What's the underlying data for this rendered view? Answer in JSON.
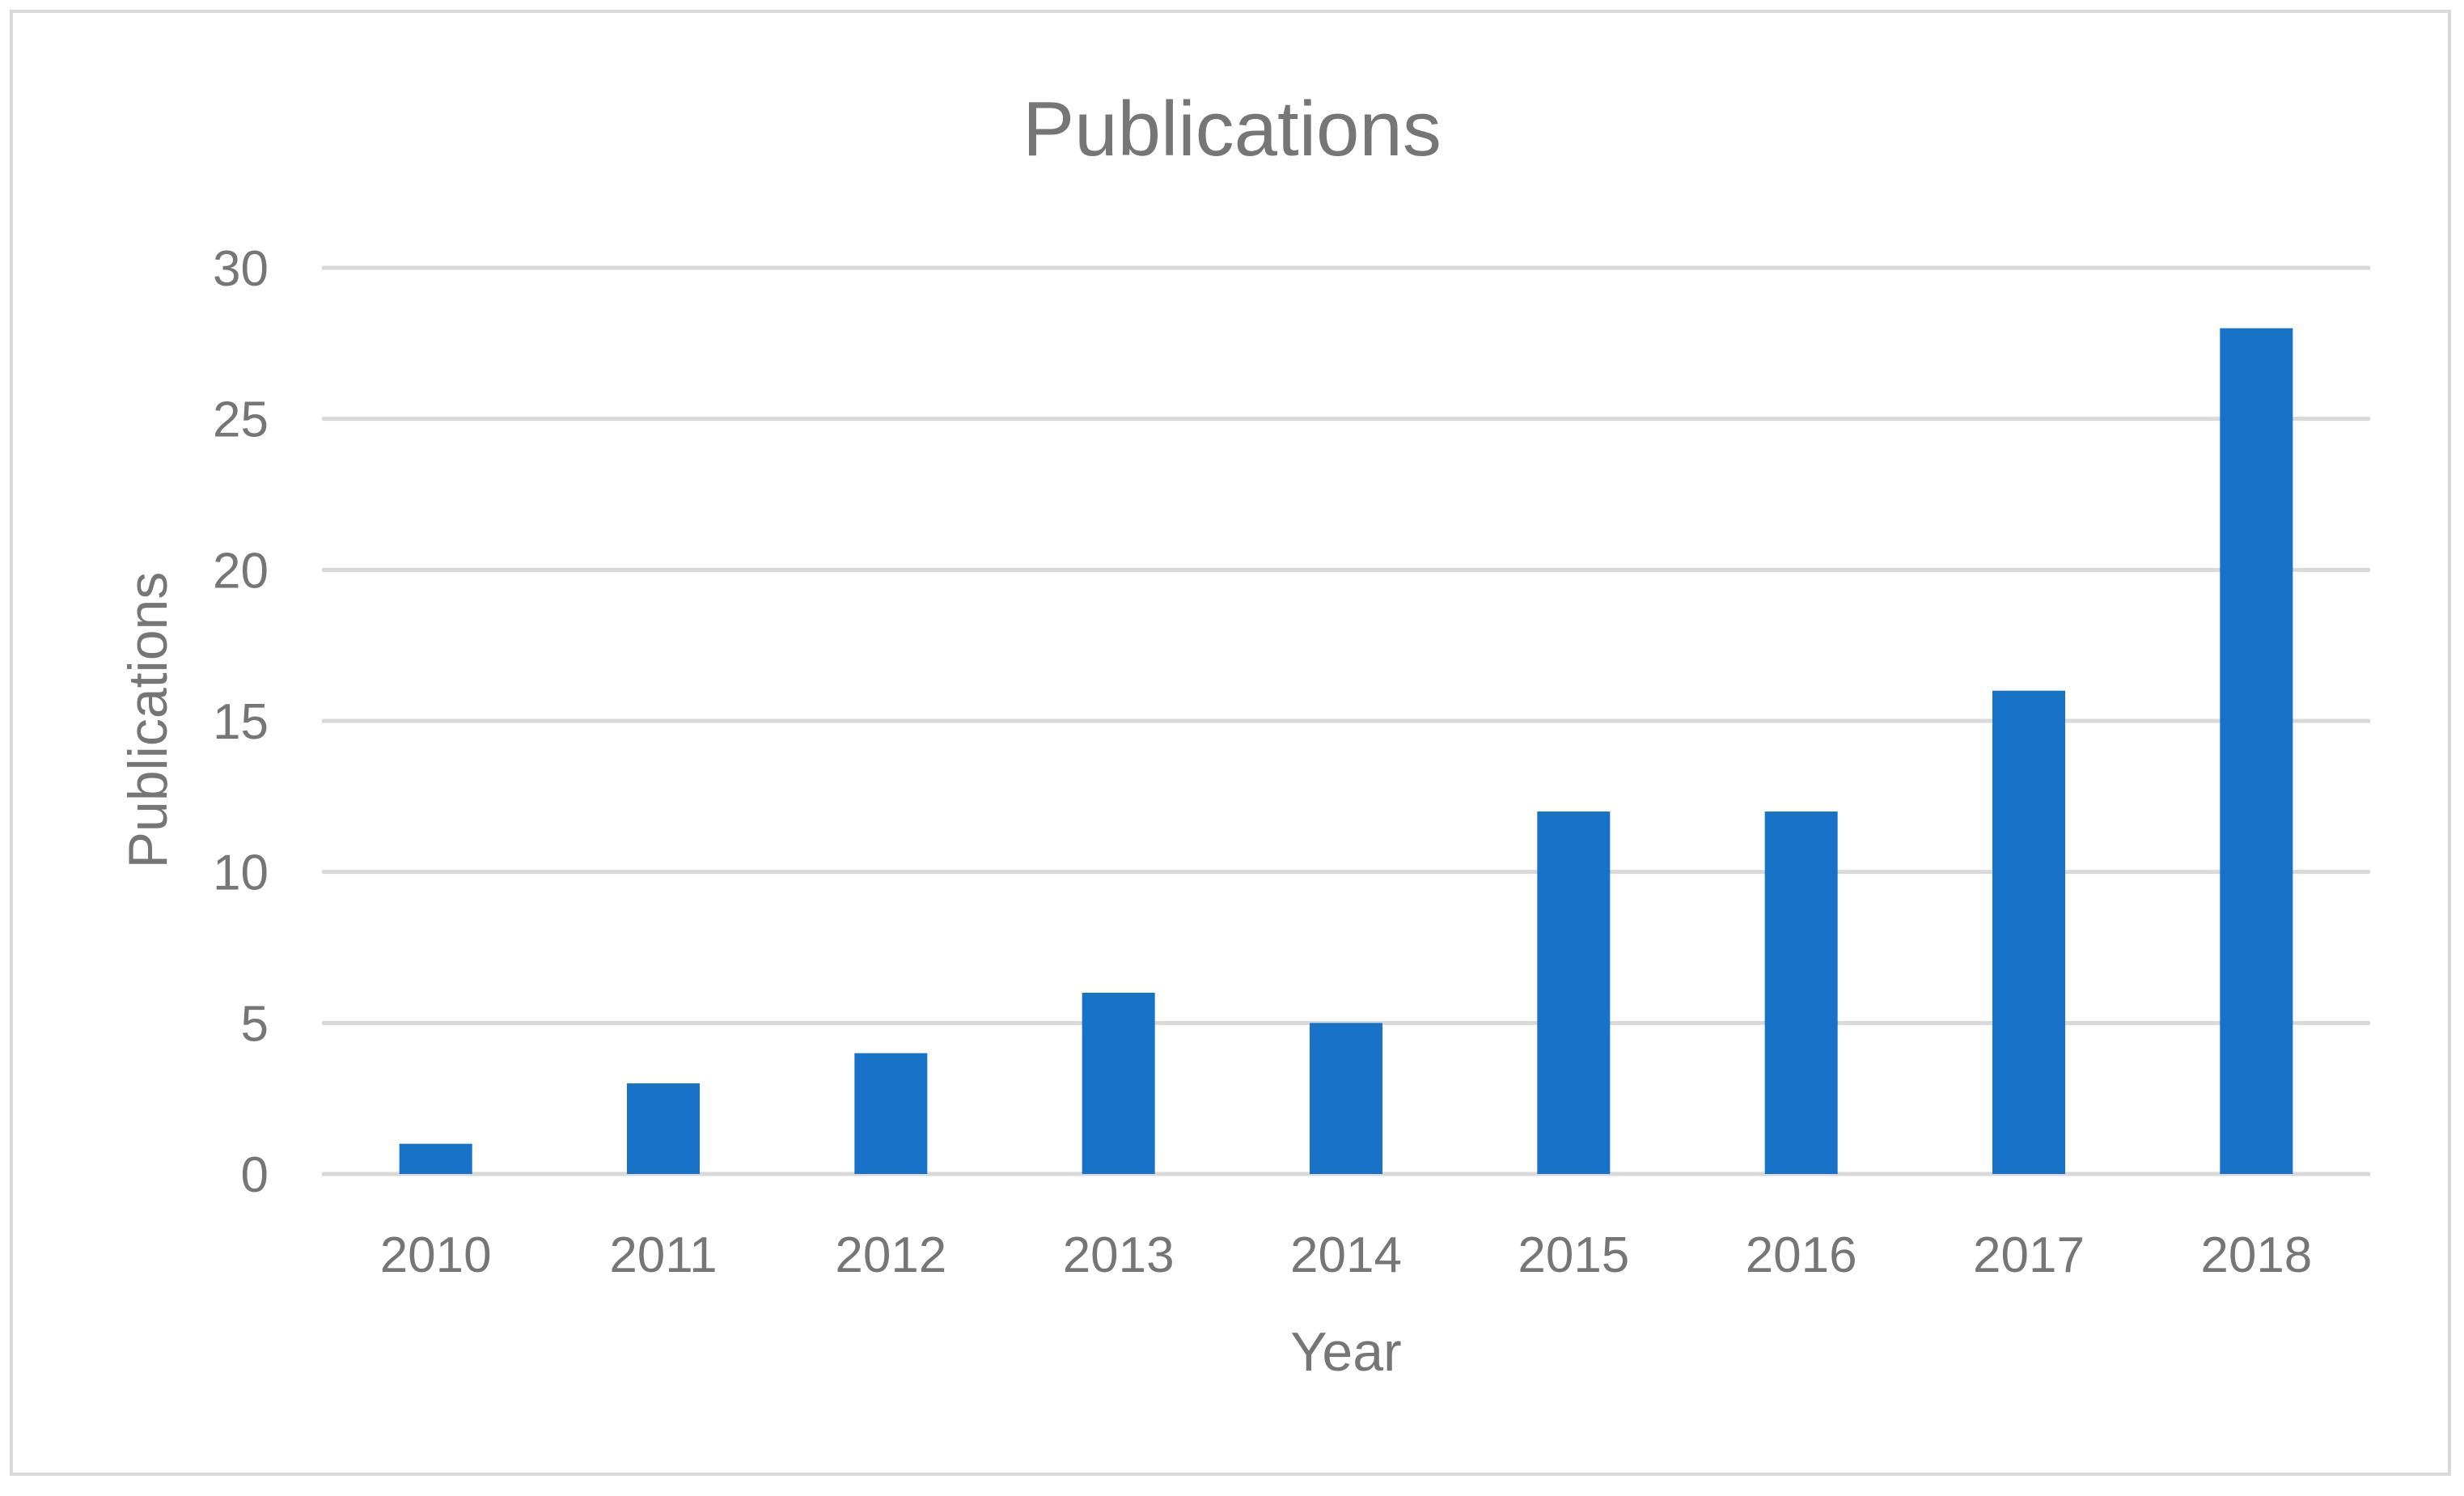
{
  "chart_data": {
    "type": "bar",
    "title": "Publications",
    "xlabel": "Year",
    "ylabel": "Publications",
    "categories": [
      "2010",
      "2011",
      "2012",
      "2013",
      "2014",
      "2015",
      "2016",
      "2017",
      "2018"
    ],
    "values": [
      1,
      3,
      4,
      6,
      5,
      12,
      12,
      16,
      28
    ],
    "ylim": [
      0,
      30
    ],
    "yticks": [
      "0",
      "5",
      "10",
      "15",
      "20",
      "25",
      "30"
    ],
    "grid": true,
    "legend": "none",
    "colors": {
      "bar": "#1772c8",
      "grid": "#d9d9d9",
      "text": "#767676"
    }
  }
}
